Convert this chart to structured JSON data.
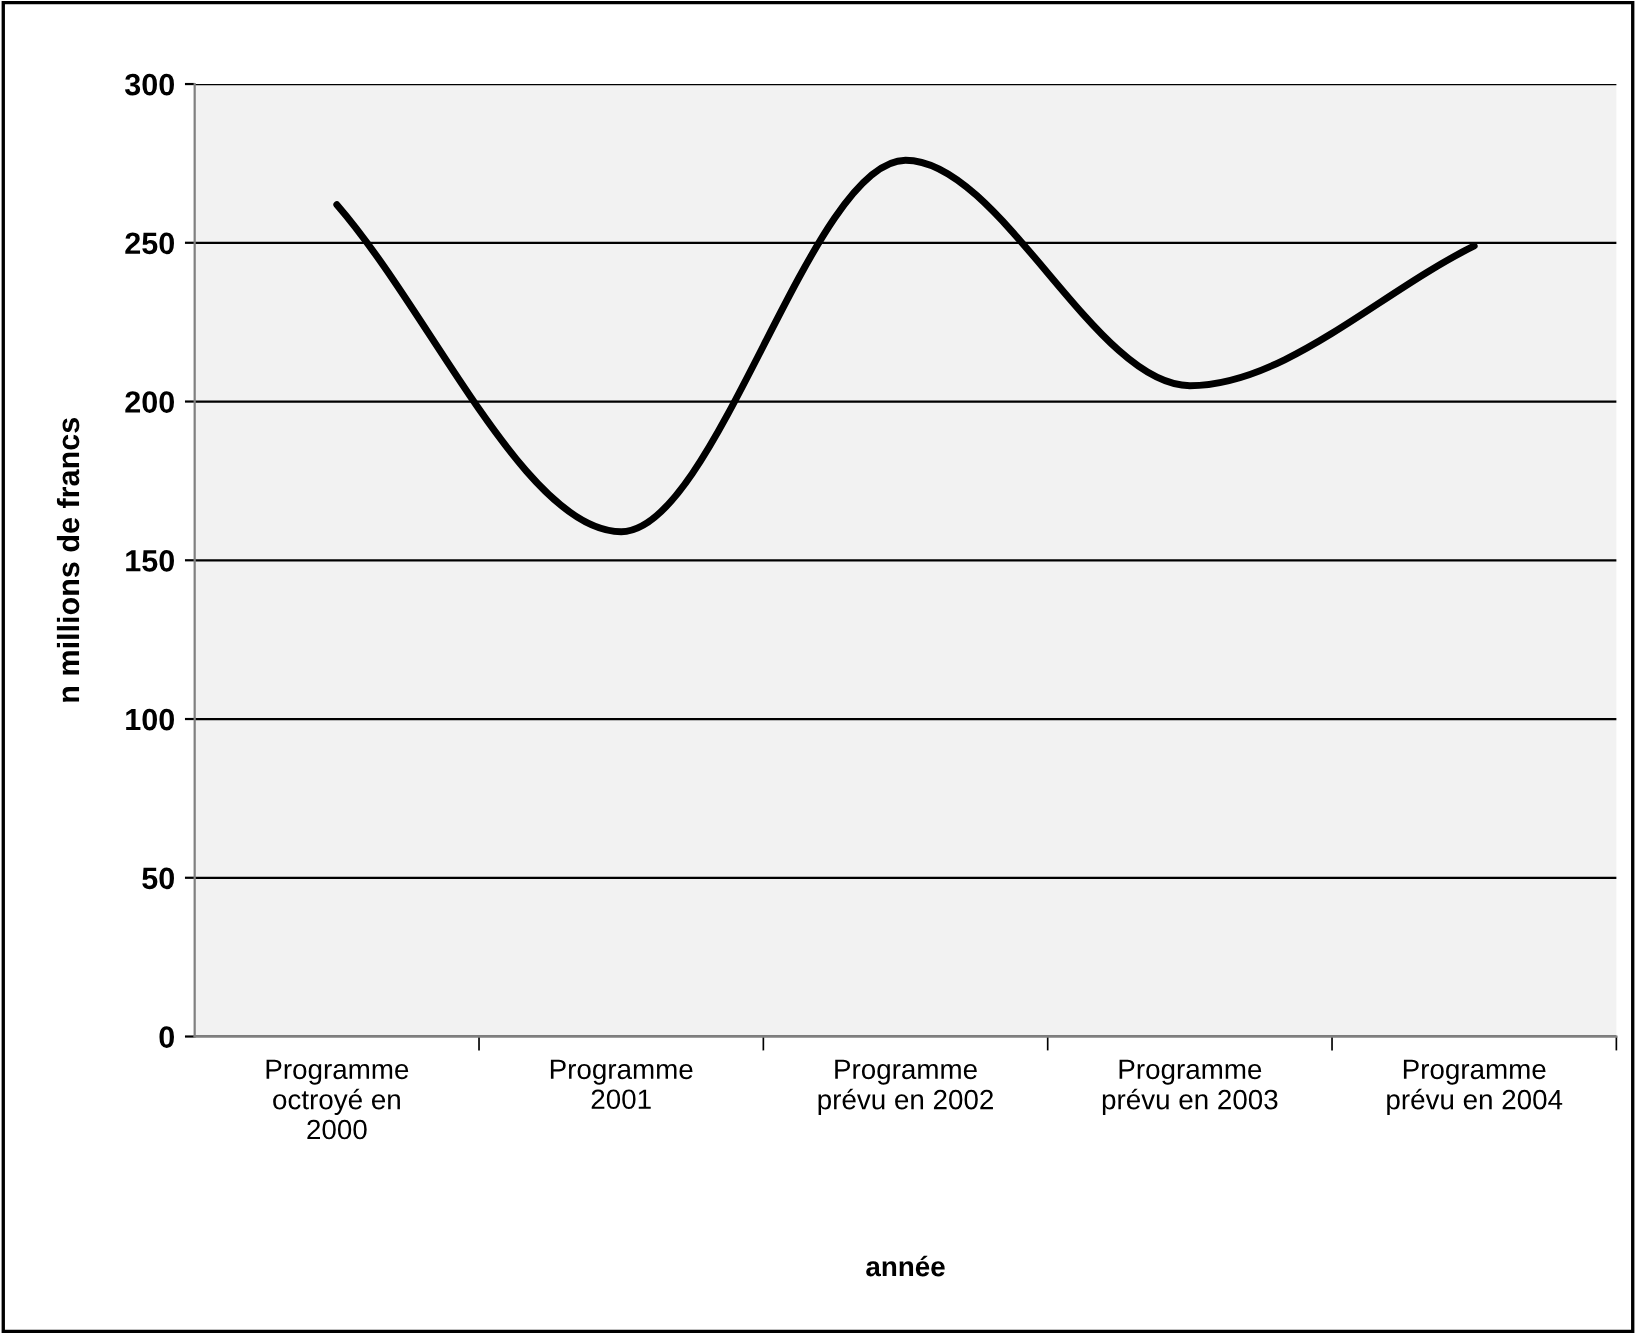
{
  "chart_data": {
    "type": "line",
    "xlabel": "année",
    "ylabel": "n millions de francs",
    "categories": [
      "Programme\noctroyé en\n2000",
      "Programme\n2001",
      "Programme\nprévu en 2002",
      "Programme\nprévu en 2003",
      "Programme\nprévu en 2004"
    ],
    "series": [
      {
        "color": "#000000",
        "values": [
          262,
          159,
          276,
          205,
          249
        ]
      }
    ],
    "ylim": [
      0,
      300
    ],
    "yticks": [
      0,
      50,
      100,
      150,
      200,
      250,
      300
    ],
    "grid": "y",
    "marker": "none",
    "line_style": "solid"
  }
}
